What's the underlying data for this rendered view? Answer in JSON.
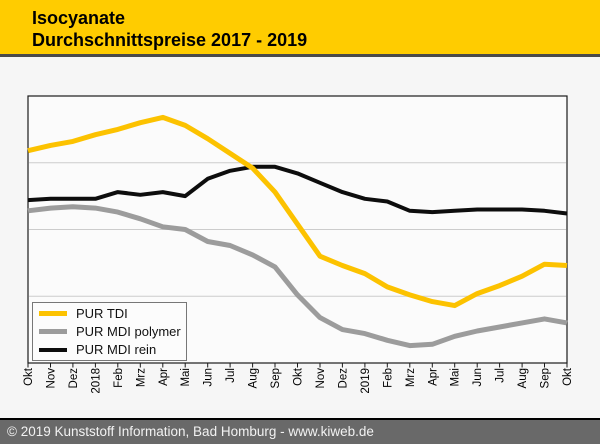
{
  "header": {
    "title_line1": "Isocyanate",
    "title_line2": "Durchschnittspreise 2017 - 2019"
  },
  "colors": {
    "header_bg": "#FFCC00",
    "footer_bg": "#696969",
    "grid": "#CCCCCC",
    "axis": "#1A1A1A",
    "plot_bg": "#FBFBFB"
  },
  "chart_data": {
    "type": "line",
    "title": "Isocyanate Durchschnittspreise 2017 - 2019",
    "x_labels": [
      "Okt",
      "Nov",
      "Dez",
      "2018",
      "Feb",
      "Mrz",
      "Apr",
      "Mai",
      "Jun",
      "Jul",
      "Aug",
      "Sep",
      "Okt",
      "Nov",
      "Dez",
      "2019",
      "Feb",
      "Mrz",
      "Apr",
      "Mai",
      "Jun",
      "Jul",
      "Aug",
      "Sep",
      "Okt"
    ],
    "x_range": "Okt 2017 - Okt 2019, monthly",
    "ylabel": "",
    "y_axis_note": "no y-axis tick values shown in source; values are estimated price index as percent of plot height (0 = bottom axis, 100 = top axis)",
    "ylim": [
      0,
      100
    ],
    "grid": "3 horizontal gridlines at 25/50/75% of plot height",
    "legend_position": "bottom-left inside plot",
    "series": [
      {
        "name": "PUR TDI",
        "color": "#FCC200",
        "values": [
          79.5,
          81.5,
          83,
          85.5,
          87.5,
          90,
          92,
          89,
          84,
          78.5,
          73,
          64,
          52,
          40,
          36.5,
          33.5,
          28.5,
          25.5,
          23,
          21.5,
          26,
          29,
          32.5,
          37,
          36.5
        ]
      },
      {
        "name": "PUR MDI polymer",
        "color": "#9C9C9C",
        "values": [
          57,
          58,
          58.5,
          58,
          56.5,
          54,
          51,
          50,
          45.5,
          44,
          40.5,
          36,
          25.5,
          17,
          12.5,
          11,
          8.5,
          6.5,
          7,
          10,
          12,
          13.5,
          15,
          16.5,
          15
        ]
      },
      {
        "name": "PUR MDI rein",
        "color": "#0D0D0D",
        "values": [
          61,
          61.5,
          61.5,
          61.5,
          64,
          63,
          64,
          62.5,
          69,
          72,
          73.5,
          73.5,
          71,
          67.5,
          64,
          61.5,
          60.5,
          57,
          56.5,
          57,
          57.5,
          57.5,
          57.5,
          57,
          56
        ]
      }
    ]
  },
  "footer": {
    "text": "© 2019 Kunststoff Information, Bad Homburg - www.kiweb.de"
  }
}
